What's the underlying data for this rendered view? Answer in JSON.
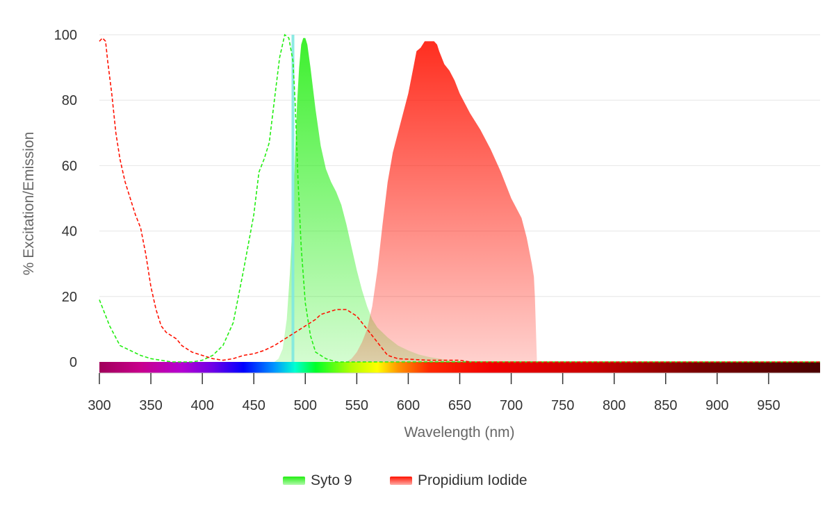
{
  "chart_data": {
    "type": "area",
    "xlabel": "Wavelength (nm)",
    "ylabel": "% Excitation/Emission",
    "xlim": [
      300,
      1000
    ],
    "ylim": [
      0,
      100
    ],
    "x_ticks": [
      "300",
      "350",
      "400",
      "450",
      "500",
      "550",
      "600",
      "650",
      "700",
      "750",
      "800",
      "850",
      "900",
      "950"
    ],
    "y_ticks": [
      "0",
      "20",
      "40",
      "60",
      "80",
      "100"
    ],
    "grid": "horizontal",
    "legend_position": "bottom",
    "laser_line_nm": 488,
    "laser_line_color": "#7fe8e0",
    "series": [
      {
        "name": "Syto 9",
        "color": "#22ee11",
        "emission": [
          [
            470,
            0
          ],
          [
            474,
            1
          ],
          [
            478,
            4
          ],
          [
            482,
            13
          ],
          [
            485,
            27
          ],
          [
            488,
            45
          ],
          [
            490,
            63
          ],
          [
            492,
            79
          ],
          [
            494,
            90
          ],
          [
            496,
            97
          ],
          [
            498,
            99
          ],
          [
            500,
            99
          ],
          [
            502,
            97
          ],
          [
            505,
            90
          ],
          [
            510,
            77
          ],
          [
            515,
            66
          ],
          [
            520,
            59
          ],
          [
            525,
            55
          ],
          [
            530,
            52
          ],
          [
            535,
            48
          ],
          [
            540,
            42
          ],
          [
            545,
            35
          ],
          [
            550,
            28
          ],
          [
            555,
            22
          ],
          [
            560,
            17
          ],
          [
            565,
            13
          ],
          [
            570,
            10.5
          ],
          [
            575,
            9
          ],
          [
            580,
            7.5
          ],
          [
            590,
            5
          ],
          [
            600,
            3.5
          ],
          [
            610,
            2.3
          ],
          [
            620,
            1.5
          ],
          [
            630,
            1
          ],
          [
            640,
            0.5
          ],
          [
            650,
            0.2
          ],
          [
            660,
            0
          ]
        ],
        "excitation": [
          [
            300,
            19
          ],
          [
            305,
            15
          ],
          [
            310,
            11
          ],
          [
            315,
            8
          ],
          [
            320,
            5
          ],
          [
            330,
            3.5
          ],
          [
            340,
            2
          ],
          [
            350,
            1
          ],
          [
            360,
            0.5
          ],
          [
            370,
            0
          ],
          [
            380,
            0
          ],
          [
            390,
            0
          ],
          [
            400,
            0.5
          ],
          [
            410,
            2
          ],
          [
            420,
            5
          ],
          [
            430,
            12
          ],
          [
            440,
            28
          ],
          [
            450,
            45
          ],
          [
            455,
            58
          ],
          [
            460,
            62
          ],
          [
            465,
            67
          ],
          [
            470,
            80
          ],
          [
            475,
            93
          ],
          [
            480,
            100
          ],
          [
            484,
            99
          ],
          [
            488,
            92
          ],
          [
            490,
            80
          ],
          [
            493,
            55
          ],
          [
            496,
            35
          ],
          [
            500,
            18
          ],
          [
            505,
            8
          ],
          [
            510,
            3
          ],
          [
            520,
            1
          ],
          [
            530,
            0
          ],
          [
            540,
            0
          ],
          [
            1000,
            0
          ]
        ]
      },
      {
        "name": "Propidium Iodide",
        "color": "#ff1100",
        "emission": [
          [
            540,
            0
          ],
          [
            545,
            1
          ],
          [
            550,
            3
          ],
          [
            555,
            6
          ],
          [
            560,
            10
          ],
          [
            565,
            17
          ],
          [
            570,
            28
          ],
          [
            575,
            42
          ],
          [
            580,
            55
          ],
          [
            585,
            64
          ],
          [
            590,
            70
          ],
          [
            595,
            76
          ],
          [
            600,
            82
          ],
          [
            605,
            90
          ],
          [
            608,
            95
          ],
          [
            612,
            96
          ],
          [
            616,
            98
          ],
          [
            620,
            98
          ],
          [
            625,
            98
          ],
          [
            628,
            97
          ],
          [
            630,
            95
          ],
          [
            635,
            91
          ],
          [
            640,
            89
          ],
          [
            645,
            86
          ],
          [
            650,
            82
          ],
          [
            660,
            76
          ],
          [
            670,
            71
          ],
          [
            680,
            65
          ],
          [
            690,
            58
          ],
          [
            700,
            50
          ],
          [
            710,
            44
          ],
          [
            715,
            38
          ],
          [
            720,
            30
          ],
          [
            722,
            26
          ],
          [
            723,
            20
          ],
          [
            724,
            10
          ],
          [
            725,
            0
          ]
        ],
        "excitation": [
          [
            300,
            98
          ],
          [
            303,
            99
          ],
          [
            306,
            98
          ],
          [
            308,
            92
          ],
          [
            312,
            82
          ],
          [
            316,
            70
          ],
          [
            320,
            62
          ],
          [
            325,
            55
          ],
          [
            330,
            50
          ],
          [
            335,
            45
          ],
          [
            340,
            41
          ],
          [
            345,
            33
          ],
          [
            350,
            23
          ],
          [
            355,
            16
          ],
          [
            360,
            11
          ],
          [
            365,
            9
          ],
          [
            370,
            8
          ],
          [
            375,
            7
          ],
          [
            380,
            5
          ],
          [
            385,
            4
          ],
          [
            390,
            3
          ],
          [
            400,
            2
          ],
          [
            410,
            1
          ],
          [
            420,
            0.5
          ],
          [
            430,
            1
          ],
          [
            440,
            2
          ],
          [
            450,
            2.5
          ],
          [
            460,
            3.5
          ],
          [
            470,
            5
          ],
          [
            480,
            7
          ],
          [
            490,
            9
          ],
          [
            500,
            11
          ],
          [
            510,
            13
          ],
          [
            515,
            14.5
          ],
          [
            520,
            15
          ],
          [
            530,
            16
          ],
          [
            540,
            16
          ],
          [
            545,
            15
          ],
          [
            550,
            14
          ],
          [
            555,
            12
          ],
          [
            560,
            10
          ],
          [
            565,
            8
          ],
          [
            570,
            6
          ],
          [
            575,
            4
          ],
          [
            580,
            2
          ],
          [
            590,
            1
          ],
          [
            620,
            0.5
          ],
          [
            650,
            0.5
          ],
          [
            660,
            0
          ],
          [
            1000,
            0
          ]
        ]
      }
    ]
  }
}
